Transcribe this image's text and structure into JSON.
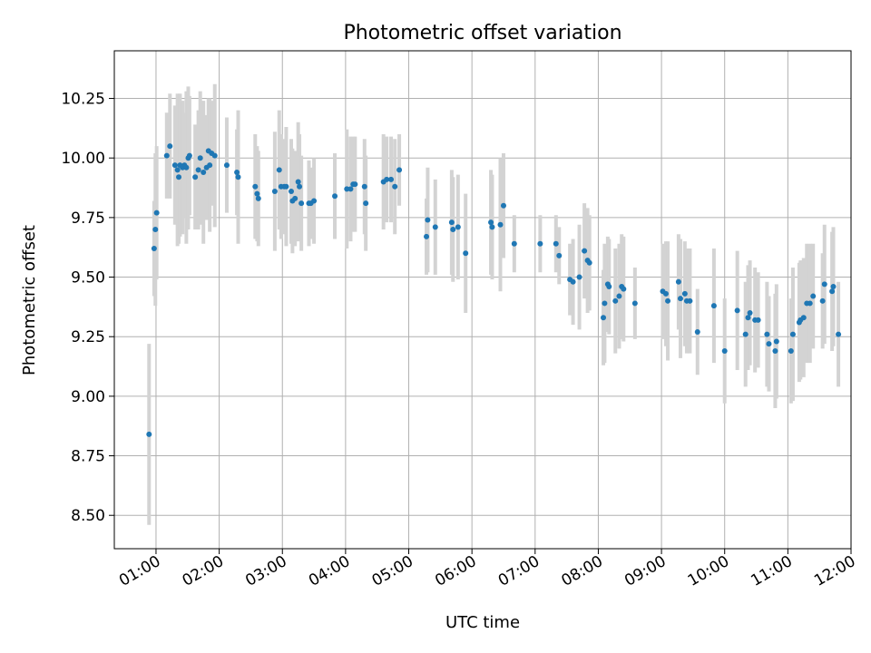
{
  "chart_data": {
    "type": "scatter",
    "title": "Photometric offset variation",
    "xlabel": "UTC time",
    "ylabel": "Photometric offset",
    "grid": true,
    "xlim_hours": [
      0.34,
      12.0
    ],
    "ylim": [
      8.36,
      10.45
    ],
    "xticks": [
      {
        "h": 1,
        "label": "01:00"
      },
      {
        "h": 2,
        "label": "02:00"
      },
      {
        "h": 3,
        "label": "03:00"
      },
      {
        "h": 4,
        "label": "04:00"
      },
      {
        "h": 5,
        "label": "05:00"
      },
      {
        "h": 6,
        "label": "06:00"
      },
      {
        "h": 7,
        "label": "07:00"
      },
      {
        "h": 8,
        "label": "08:00"
      },
      {
        "h": 9,
        "label": "09:00"
      },
      {
        "h": 10,
        "label": "10:00"
      },
      {
        "h": 11,
        "label": "11:00"
      },
      {
        "h": 12,
        "label": "12:00"
      }
    ],
    "yticks": [
      {
        "v": 8.5,
        "label": "8.50"
      },
      {
        "v": 8.75,
        "label": "8.75"
      },
      {
        "v": 9.0,
        "label": "9.00"
      },
      {
        "v": 9.25,
        "label": "9.25"
      },
      {
        "v": 9.5,
        "label": "9.50"
      },
      {
        "v": 9.75,
        "label": "9.75"
      },
      {
        "v": 10.0,
        "label": "10.00"
      },
      {
        "v": 10.25,
        "label": "10.25"
      }
    ],
    "colors": {
      "point": "#1f77b4",
      "errorbar": "#d3d3d3",
      "grid": "#b0b0b0",
      "axis": "#000000"
    },
    "points": [
      [
        0.89,
        8.84,
        0.38
      ],
      [
        0.97,
        9.62,
        0.2
      ],
      [
        0.99,
        9.7,
        0.32
      ],
      [
        1.01,
        9.77,
        0.28
      ],
      [
        1.17,
        10.01,
        0.18
      ],
      [
        1.22,
        10.05,
        0.22
      ],
      [
        1.3,
        9.97,
        0.25
      ],
      [
        1.34,
        9.95,
        0.32
      ],
      [
        1.36,
        9.92,
        0.28
      ],
      [
        1.38,
        9.97,
        0.3
      ],
      [
        1.42,
        9.96,
        0.28
      ],
      [
        1.45,
        9.97,
        0.22
      ],
      [
        1.48,
        9.96,
        0.32
      ],
      [
        1.51,
        10.0,
        0.3
      ],
      [
        1.53,
        10.01,
        0.25
      ],
      [
        1.62,
        9.92,
        0.22
      ],
      [
        1.67,
        9.95,
        0.25
      ],
      [
        1.7,
        10.0,
        0.28
      ],
      [
        1.75,
        9.94,
        0.3
      ],
      [
        1.8,
        9.96,
        0.22
      ],
      [
        1.83,
        10.03,
        0.22
      ],
      [
        1.85,
        9.97,
        0.28
      ],
      [
        1.88,
        10.02,
        0.22
      ],
      [
        1.93,
        10.01,
        0.3
      ],
      [
        2.12,
        9.97,
        0.2
      ],
      [
        2.28,
        9.94,
        0.18
      ],
      [
        2.3,
        9.92,
        0.28
      ],
      [
        2.57,
        9.88,
        0.22
      ],
      [
        2.6,
        9.85,
        0.2
      ],
      [
        2.62,
        9.83,
        0.2
      ],
      [
        2.88,
        9.86,
        0.25
      ],
      [
        2.95,
        9.95,
        0.25
      ],
      [
        2.98,
        9.88,
        0.22
      ],
      [
        3.03,
        9.88,
        0.2
      ],
      [
        3.06,
        9.88,
        0.25
      ],
      [
        3.14,
        9.86,
        0.22
      ],
      [
        3.16,
        9.82,
        0.22
      ],
      [
        3.2,
        9.83,
        0.2
      ],
      [
        3.25,
        9.9,
        0.25
      ],
      [
        3.27,
        9.88,
        0.22
      ],
      [
        3.3,
        9.81,
        0.2
      ],
      [
        3.42,
        9.81,
        0.18
      ],
      [
        3.45,
        9.81,
        0.15
      ],
      [
        3.5,
        9.82,
        0.18
      ],
      [
        3.83,
        9.84,
        0.18
      ],
      [
        4.02,
        9.87,
        0.25
      ],
      [
        4.08,
        9.87,
        0.22
      ],
      [
        4.12,
        9.89,
        0.2
      ],
      [
        4.15,
        9.89,
        0.2
      ],
      [
        4.3,
        9.88,
        0.2
      ],
      [
        4.32,
        9.81,
        0.2
      ],
      [
        4.6,
        9.9,
        0.2
      ],
      [
        4.65,
        9.91,
        0.18
      ],
      [
        4.72,
        9.91,
        0.18
      ],
      [
        4.78,
        9.88,
        0.2
      ],
      [
        4.85,
        9.95,
        0.15
      ],
      [
        5.28,
        9.67,
        0.16
      ],
      [
        5.3,
        9.74,
        0.22
      ],
      [
        5.42,
        9.71,
        0.2
      ],
      [
        5.68,
        9.73,
        0.22
      ],
      [
        5.7,
        9.7,
        0.22
      ],
      [
        5.78,
        9.71,
        0.22
      ],
      [
        5.9,
        9.6,
        0.25
      ],
      [
        6.3,
        9.73,
        0.22
      ],
      [
        6.32,
        9.71,
        0.22
      ],
      [
        6.45,
        9.72,
        0.28
      ],
      [
        6.5,
        9.8,
        0.22
      ],
      [
        6.67,
        9.64,
        0.12
      ],
      [
        7.08,
        9.64,
        0.12
      ],
      [
        7.33,
        9.64,
        0.12
      ],
      [
        7.38,
        9.59,
        0.12
      ],
      [
        7.55,
        9.49,
        0.15
      ],
      [
        7.6,
        9.48,
        0.18
      ],
      [
        7.7,
        9.5,
        0.22
      ],
      [
        7.78,
        9.61,
        0.2
      ],
      [
        7.83,
        9.57,
        0.22
      ],
      [
        7.86,
        9.56,
        0.2
      ],
      [
        8.08,
        9.33,
        0.2
      ],
      [
        8.1,
        9.39,
        0.25
      ],
      [
        8.15,
        9.47,
        0.2
      ],
      [
        8.17,
        9.46,
        0.2
      ],
      [
        8.27,
        9.4,
        0.22
      ],
      [
        8.33,
        9.42,
        0.22
      ],
      [
        8.37,
        9.46,
        0.22
      ],
      [
        8.4,
        9.45,
        0.22
      ],
      [
        8.58,
        9.39,
        0.15
      ],
      [
        9.02,
        9.44,
        0.2
      ],
      [
        9.07,
        9.43,
        0.22
      ],
      [
        9.1,
        9.4,
        0.25
      ],
      [
        9.27,
        9.48,
        0.2
      ],
      [
        9.3,
        9.41,
        0.25
      ],
      [
        9.37,
        9.43,
        0.22
      ],
      [
        9.4,
        9.4,
        0.22
      ],
      [
        9.45,
        9.4,
        0.22
      ],
      [
        9.57,
        9.27,
        0.18
      ],
      [
        9.83,
        9.38,
        0.24
      ],
      [
        10.0,
        9.19,
        0.22
      ],
      [
        10.2,
        9.36,
        0.25
      ],
      [
        10.33,
        9.26,
        0.22
      ],
      [
        10.37,
        9.33,
        0.22
      ],
      [
        10.4,
        9.35,
        0.22
      ],
      [
        10.48,
        9.32,
        0.22
      ],
      [
        10.53,
        9.32,
        0.2
      ],
      [
        10.67,
        9.26,
        0.22
      ],
      [
        10.7,
        9.22,
        0.2
      ],
      [
        10.8,
        9.19,
        0.24
      ],
      [
        10.82,
        9.23,
        0.24
      ],
      [
        11.05,
        9.19,
        0.22
      ],
      [
        11.08,
        9.26,
        0.28
      ],
      [
        11.18,
        9.31,
        0.25
      ],
      [
        11.2,
        9.32,
        0.25
      ],
      [
        11.25,
        9.33,
        0.25
      ],
      [
        11.3,
        9.39,
        0.25
      ],
      [
        11.35,
        9.39,
        0.25
      ],
      [
        11.4,
        9.42,
        0.22
      ],
      [
        11.55,
        9.4,
        0.2
      ],
      [
        11.58,
        9.47,
        0.25
      ],
      [
        11.7,
        9.44,
        0.25
      ],
      [
        11.72,
        9.46,
        0.25
      ],
      [
        11.8,
        9.26,
        0.22
      ]
    ]
  }
}
